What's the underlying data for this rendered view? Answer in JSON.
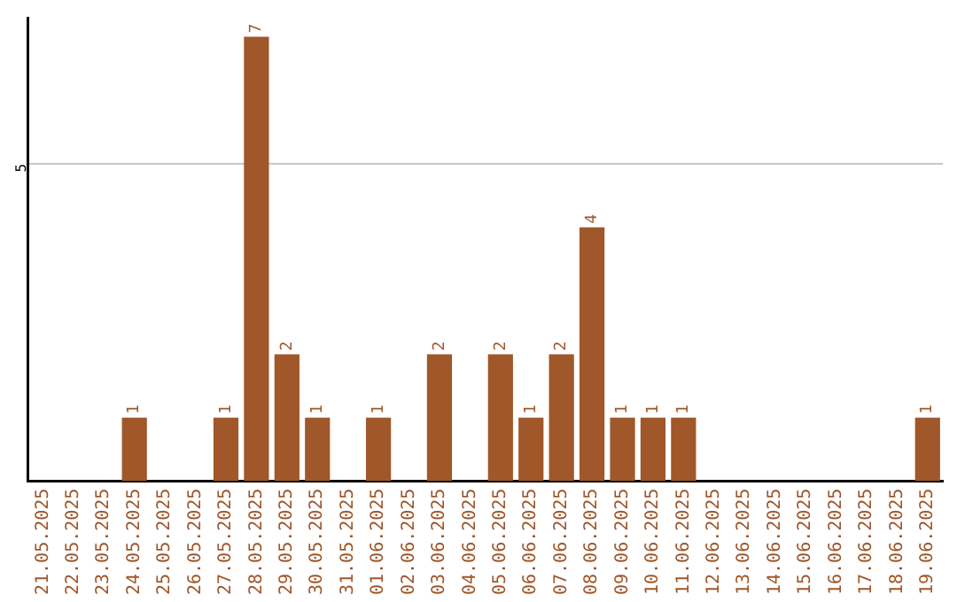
{
  "chart_data": {
    "type": "bar",
    "categories": [
      "21.05.2025",
      "22.05.2025",
      "23.05.2025",
      "24.05.2025",
      "25.05.2025",
      "26.05.2025",
      "27.05.2025",
      "28.05.2025",
      "29.05.2025",
      "30.05.2025",
      "31.05.2025",
      "01.06.2025",
      "02.06.2025",
      "03.06.2025",
      "04.06.2025",
      "05.06.2025",
      "06.06.2025",
      "07.06.2025",
      "08.06.2025",
      "09.06.2025",
      "10.06.2025",
      "11.06.2025",
      "12.06.2025",
      "13.06.2025",
      "14.06.2025",
      "15.06.2025",
      "16.06.2025",
      "17.06.2025",
      "18.06.2025",
      "19.06.2025"
    ],
    "values": [
      null,
      null,
      null,
      1,
      null,
      null,
      1,
      7,
      2,
      1,
      null,
      1,
      null,
      2,
      null,
      2,
      1,
      2,
      4,
      1,
      1,
      1,
      null,
      null,
      null,
      null,
      null,
      null,
      null,
      1
    ],
    "color": "#a0572a",
    "ylim": [
      0,
      7.3
    ],
    "yticks": [
      5
    ],
    "grid": "y",
    "data_labels": true,
    "legend": false
  }
}
